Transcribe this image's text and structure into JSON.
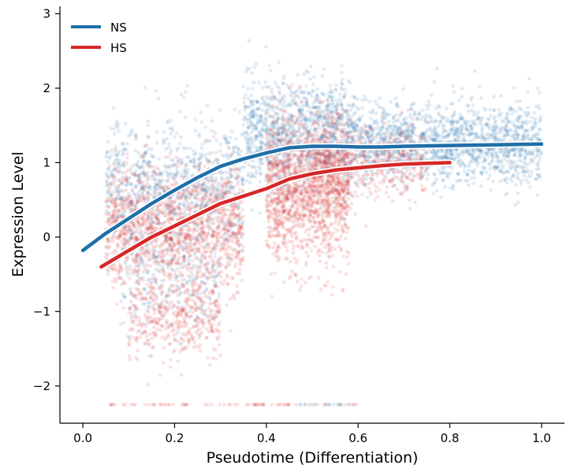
{
  "chart_data": {
    "type": "scatter",
    "title": "",
    "xlabel": "Pseudotime (Differentiation)",
    "ylabel": "Expression Level",
    "xlim": [
      -0.05,
      1.05
    ],
    "ylim": [
      -2.5,
      3.1
    ],
    "x_ticks": [
      0.0,
      0.2,
      0.4,
      0.6,
      0.8,
      1.0
    ],
    "x_tick_labels": [
      "0.0",
      "0.2",
      "0.4",
      "0.6",
      "0.8",
      "1.0"
    ],
    "y_ticks": [
      -2,
      -1,
      0,
      1,
      2,
      3
    ],
    "y_tick_labels": [
      "−2",
      "−1",
      "0",
      "1",
      "2",
      "3"
    ],
    "grid": false,
    "legend_position": "top-left",
    "series": [
      {
        "name": "NS",
        "color": "#1f6fa8",
        "trend": {
          "x": [
            0.0,
            0.05,
            0.1,
            0.15,
            0.2,
            0.25,
            0.3,
            0.35,
            0.4,
            0.45,
            0.5,
            0.55,
            0.6,
            0.65,
            0.7,
            0.8,
            0.9,
            1.0
          ],
          "y": [
            -0.18,
            0.05,
            0.25,
            0.45,
            0.63,
            0.8,
            0.95,
            1.05,
            1.13,
            1.2,
            1.22,
            1.22,
            1.21,
            1.21,
            1.22,
            1.23,
            1.24,
            1.25
          ]
        },
        "point_clusters": [
          {
            "x": [
              0.05,
              0.35
            ],
            "y_center": 0.7,
            "y_spread": 0.7,
            "count": 900
          },
          {
            "x": [
              0.35,
              0.6
            ],
            "y_center": 1.4,
            "y_spread": 0.6,
            "count": 1100
          },
          {
            "x": [
              0.6,
              1.0
            ],
            "y_center": 1.25,
            "y_spread": 0.45,
            "count": 1500
          },
          {
            "x": [
              0.08,
              0.3
            ],
            "y_center": -0.6,
            "y_spread": 0.6,
            "count": 250
          }
        ]
      },
      {
        "name": "HS",
        "color": "#d62728",
        "trend": {
          "x": [
            0.04,
            0.1,
            0.15,
            0.2,
            0.25,
            0.3,
            0.35,
            0.4,
            0.45,
            0.5,
            0.55,
            0.6,
            0.65,
            0.7,
            0.75,
            0.8
          ],
          "y": [
            -0.4,
            -0.18,
            0.0,
            0.15,
            0.3,
            0.45,
            0.55,
            0.65,
            0.78,
            0.85,
            0.9,
            0.93,
            0.96,
            0.98,
            0.99,
            1.0
          ]
        },
        "point_clusters": [
          {
            "x": [
              0.05,
              0.35
            ],
            "y_center": 0.1,
            "y_spread": 0.7,
            "count": 1500
          },
          {
            "x": [
              0.4,
              0.58
            ],
            "y_center": 0.7,
            "y_spread": 0.8,
            "count": 1600
          },
          {
            "x": [
              0.5,
              0.75
            ],
            "y_center": 1.0,
            "y_spread": 0.4,
            "count": 500
          },
          {
            "x": [
              0.1,
              0.3
            ],
            "y_center": -1.1,
            "y_spread": 0.45,
            "count": 400
          }
        ]
      }
    ],
    "floor_points": {
      "y": -2.25,
      "x_range": [
        0.05,
        0.6
      ]
    }
  }
}
